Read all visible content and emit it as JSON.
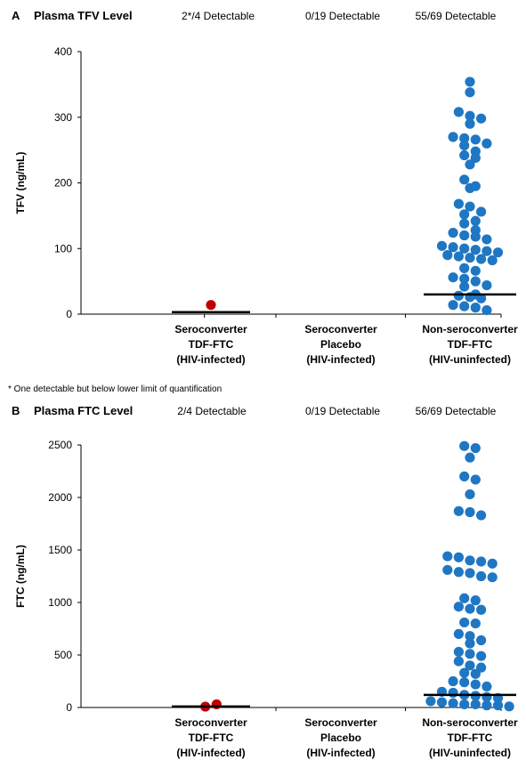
{
  "chart_data": [
    {
      "type": "scatter",
      "panel": "A",
      "title": "Plasma TFV Level",
      "ylabel": "TFV (ng/mL)",
      "ylim": [
        0,
        400
      ],
      "yticks": [
        0,
        100,
        200,
        300,
        400
      ],
      "grid": false,
      "categories": [
        [
          "Seroconverter",
          "TDF-FTC",
          "(HIV-infected)"
        ],
        [
          "Seroconverter",
          "Placebo",
          "(HIV-infected)"
        ],
        [
          "Non-seroconverter",
          "TDF-FTC",
          "(HIV-uninfected)"
        ]
      ],
      "detectable": [
        "2*/4 Detectable",
        "0/19 Detectable",
        "55/69 Detectable"
      ],
      "footnote": "* One detectable but below lower limit of quantification",
      "medians": [
        3,
        null,
        30
      ],
      "series": [
        {
          "color": "#c00000",
          "values": [
            14
          ]
        },
        {
          "color": "#1f6fbf",
          "values": []
        },
        {
          "color": "#1f77c4",
          "values": [
            354,
            338,
            308,
            302,
            298,
            290,
            270,
            268,
            266,
            260,
            257,
            248,
            242,
            238,
            228,
            205,
            195,
            192,
            168,
            164,
            156,
            152,
            142,
            138,
            128,
            124,
            120,
            118,
            114,
            104,
            102,
            100,
            98,
            96,
            94,
            90,
            88,
            86,
            84,
            82,
            70,
            66,
            56,
            54,
            50,
            44,
            42,
            30,
            28,
            26,
            24,
            14,
            12,
            10,
            6
          ]
        }
      ]
    },
    {
      "type": "scatter",
      "panel": "B",
      "title": "Plasma FTC Level",
      "ylabel": "FTC (ng/mL)",
      "ylim": [
        0,
        2500
      ],
      "yticks": [
        0,
        500,
        1000,
        1500,
        2000,
        2500
      ],
      "grid": false,
      "categories": [
        [
          "Seroconverter",
          "TDF-FTC",
          "(HIV-infected)"
        ],
        [
          "Seroconverter",
          "Placebo",
          "(HIV-infected)"
        ],
        [
          "Non-seroconverter",
          "TDF-FTC",
          "(HIV-uninfected)"
        ]
      ],
      "detectable": [
        "2/4 Detectable",
        "0/19 Detectable",
        "56/69 Detectable"
      ],
      "medians": [
        10,
        null,
        120
      ],
      "series": [
        {
          "color": "#c00000",
          "values": [
            8,
            30
          ]
        },
        {
          "color": "#1f6fbf",
          "values": []
        },
        {
          "color": "#1f77c4",
          "values": [
            2490,
            2470,
            2380,
            2200,
            2170,
            2030,
            1870,
            1860,
            1830,
            1440,
            1430,
            1400,
            1390,
            1370,
            1310,
            1290,
            1280,
            1250,
            1240,
            1040,
            1020,
            960,
            940,
            930,
            810,
            800,
            700,
            680,
            640,
            610,
            530,
            510,
            490,
            440,
            400,
            380,
            330,
            320,
            250,
            240,
            220,
            200,
            150,
            140,
            120,
            110,
            100,
            90,
            60,
            50,
            40,
            30,
            30,
            20,
            20,
            10
          ]
        }
      ]
    }
  ]
}
